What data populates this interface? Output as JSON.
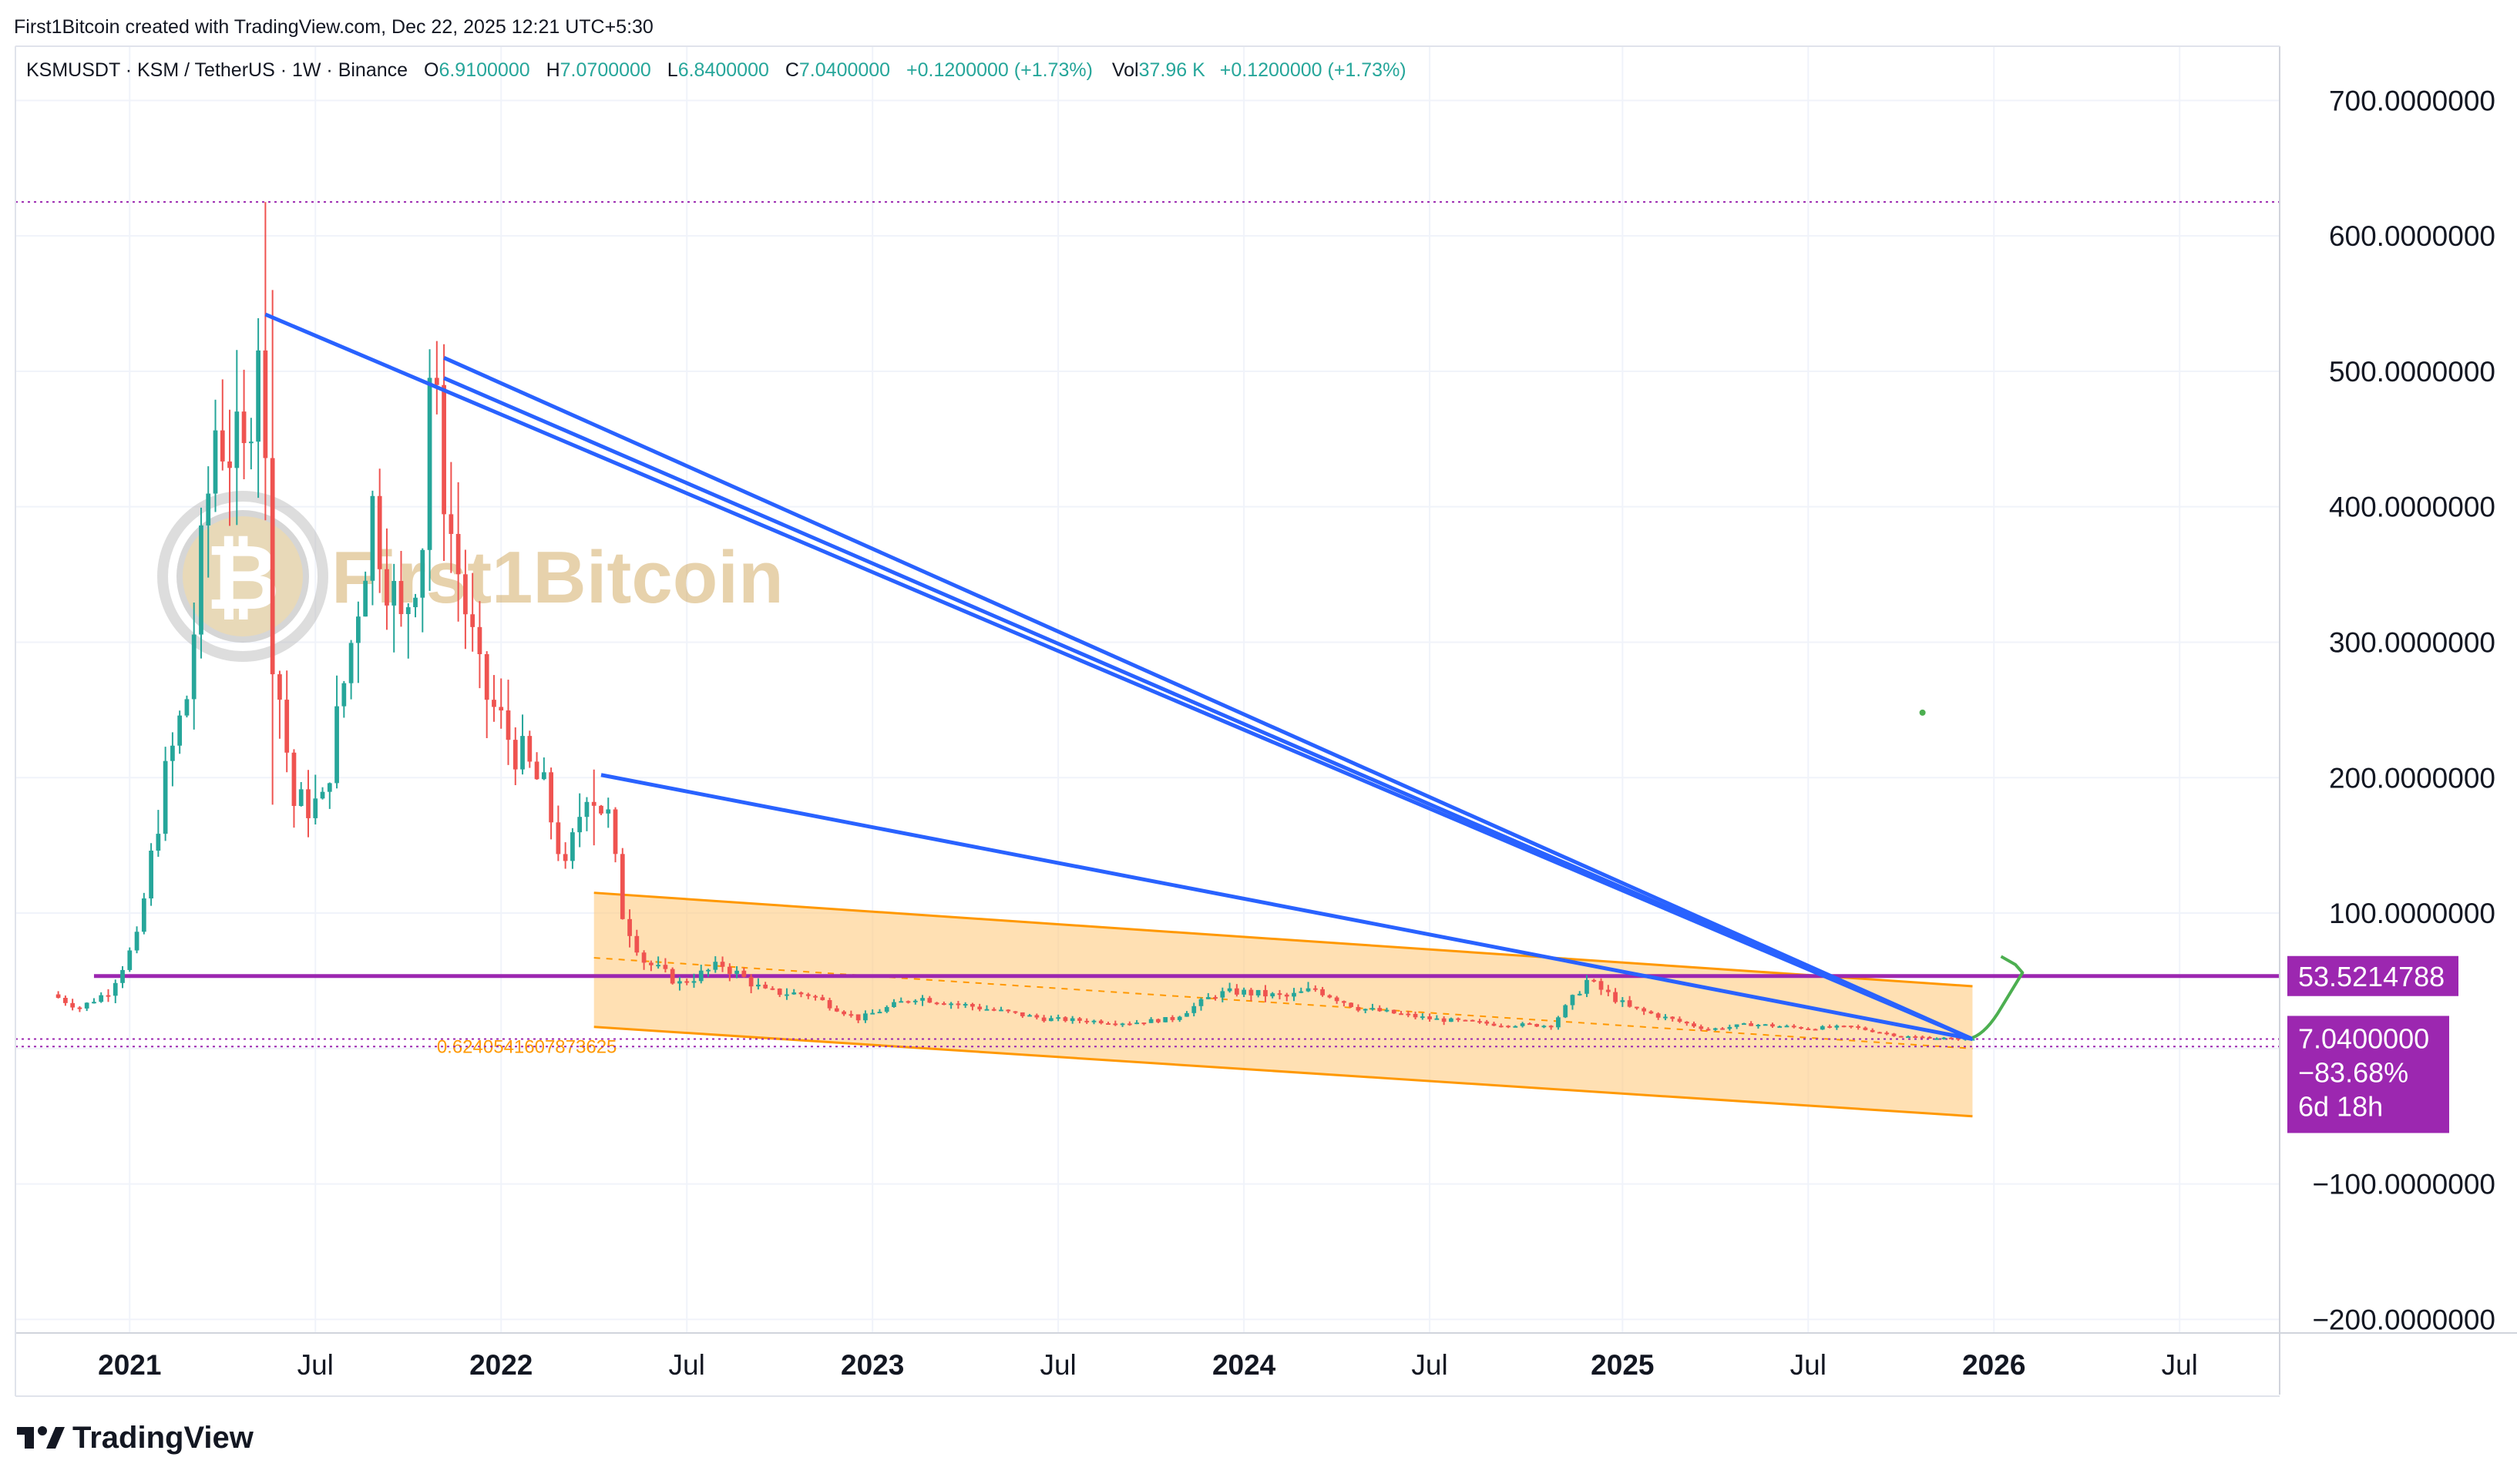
{
  "header": {
    "credit": "First1Bitcoin created with TradingView.com, Dec 22, 2025 12:21 UTC+5:30"
  },
  "legend": {
    "symbol": "KSMUSDT · KSM / TetherUS · 1W · Binance",
    "open_label": "O",
    "open": "6.9100000",
    "high_label": "H",
    "high": "7.0700000",
    "low_label": "L",
    "low": "6.8400000",
    "close_label": "C",
    "close": "7.0400000",
    "change": "+0.1200000 (+1.73%)",
    "vol_label": "Vol",
    "vol": "37.96 K",
    "vol_change": "+0.1200000 (+1.73%)"
  },
  "watermark": {
    "text": "First1Bitcoin",
    "icon": "bitcoin-coin-logo"
  },
  "footer": {
    "brand": "TradingView",
    "icon": "tradingview-logo-icon"
  },
  "colors": {
    "up": "#26a69a",
    "down": "#ef5350",
    "trendline": "#2962ff",
    "channel_fill": "#ffcc80",
    "channel_line": "#ff9800",
    "level": "#9c27b0",
    "label_bg": "#9c27b0",
    "projection": "#4caf50"
  },
  "chart_data": {
    "type": "candlestick",
    "title": "KSMUSDT · KSM / TetherUS · 1W · Binance",
    "ylim": [
      -210,
      740
    ],
    "xlim": [
      "2020-09-14",
      "2026-10-12"
    ],
    "yticks": [
      {
        "value": 700,
        "label": "700.0000000"
      },
      {
        "value": 600,
        "label": "600.0000000"
      },
      {
        "value": 500,
        "label": "500.0000000"
      },
      {
        "value": 400,
        "label": "400.0000000"
      },
      {
        "value": 300,
        "label": "300.0000000"
      },
      {
        "value": 200,
        "label": "200.0000000"
      },
      {
        "value": 100,
        "label": "100.0000000"
      },
      {
        "value": -100,
        "label": "−100.0000000"
      },
      {
        "value": -200,
        "label": "−200.0000000"
      }
    ],
    "xticks": [
      {
        "date": "2021-01-04",
        "label": "2021",
        "bold": true
      },
      {
        "date": "2021-07-05",
        "label": "Jul",
        "bold": false
      },
      {
        "date": "2022-01-03",
        "label": "2022",
        "bold": true
      },
      {
        "date": "2022-07-04",
        "label": "Jul",
        "bold": false
      },
      {
        "date": "2023-01-02",
        "label": "2023",
        "bold": true
      },
      {
        "date": "2023-07-03",
        "label": "Jul",
        "bold": false
      },
      {
        "date": "2024-01-01",
        "label": "2024",
        "bold": true
      },
      {
        "date": "2024-07-01",
        "label": "Jul",
        "bold": false
      },
      {
        "date": "2025-01-06",
        "label": "2025",
        "bold": true
      },
      {
        "date": "2025-07-07",
        "label": "Jul",
        "bold": false
      },
      {
        "date": "2026-01-05",
        "label": "2026",
        "bold": true
      },
      {
        "date": "2026-07-06",
        "label": "Jul",
        "bold": false
      }
    ],
    "anchors": [
      [
        "2020-10-26",
        40
      ],
      [
        "2020-11-23",
        30
      ],
      [
        "2020-12-21",
        42
      ],
      [
        "2021-01-18",
        80
      ],
      [
        "2021-02-15",
        200
      ],
      [
        "2021-03-08",
        260
      ],
      [
        "2021-04-05",
        460
      ],
      [
        "2021-05-03",
        430
      ],
      [
        "2021-05-17",
        540
      ],
      [
        "2021-05-31",
        300
      ],
      [
        "2021-06-21",
        180
      ],
      [
        "2021-07-19",
        180
      ],
      [
        "2021-08-16",
        300
      ],
      [
        "2021-09-06",
        400
      ],
      [
        "2021-10-04",
        310
      ],
      [
        "2021-10-25",
        380
      ],
      [
        "2021-11-01",
        500
      ],
      [
        "2021-11-22",
        380
      ],
      [
        "2021-12-20",
        270
      ],
      [
        "2022-01-17",
        230
      ],
      [
        "2022-02-21",
        190
      ],
      [
        "2022-03-14",
        130
      ],
      [
        "2022-04-04",
        195
      ],
      [
        "2022-04-25",
        170
      ],
      [
        "2022-05-09",
        100
      ],
      [
        "2022-05-30",
        65
      ],
      [
        "2022-07-04",
        48
      ],
      [
        "2022-08-15",
        62
      ],
      [
        "2022-09-26",
        42
      ],
      [
        "2022-11-07",
        40
      ],
      [
        "2022-12-26",
        22
      ],
      [
        "2023-02-20",
        38
      ],
      [
        "2023-04-10",
        32
      ],
      [
        "2023-06-26",
        22
      ],
      [
        "2023-09-18",
        19
      ],
      [
        "2023-10-30",
        22
      ],
      [
        "2023-12-11",
        40
      ],
      [
        "2024-01-01",
        42
      ],
      [
        "2024-02-19",
        38
      ],
      [
        "2024-03-18",
        44
      ],
      [
        "2024-04-29",
        30
      ],
      [
        "2024-07-08",
        22
      ],
      [
        "2024-09-09",
        18
      ],
      [
        "2024-11-04",
        17
      ],
      [
        "2024-12-09",
        50
      ],
      [
        "2025-01-20",
        30
      ],
      [
        "2025-04-07",
        14
      ],
      [
        "2025-05-19",
        18
      ],
      [
        "2025-07-14",
        15
      ],
      [
        "2025-08-25",
        16
      ],
      [
        "2025-10-13",
        9
      ],
      [
        "2025-12-15",
        7
      ]
    ],
    "spikes": [
      {
        "date": "2021-05-17",
        "high": 625,
        "low": 390
      },
      {
        "date": "2021-05-24",
        "high": 560,
        "low": 180
      },
      {
        "date": "2021-11-08",
        "high": 520,
        "low": 360
      },
      {
        "date": "2022-04-04",
        "high": 206,
        "low": 150
      }
    ],
    "last_candle": {
      "date": "2025-12-15",
      "open": 6.91,
      "high": 7.07,
      "low": 6.84,
      "close": 7.04
    },
    "annotations": {
      "falling_wedge_lines": [
        {
          "from": [
            "2021-05-17",
            542
          ],
          "to": [
            "2025-12-15",
            7
          ]
        },
        {
          "from": [
            "2021-11-08",
            510
          ],
          "to": [
            "2025-12-15",
            7
          ]
        },
        {
          "from": [
            "2021-11-08",
            495
          ],
          "to": [
            "2025-12-15",
            7
          ]
        },
        {
          "from": [
            "2022-04-11",
            202
          ],
          "to": [
            "2025-12-15",
            7
          ]
        }
      ],
      "regression_channel": {
        "start": "2022-04-04",
        "end": "2025-12-15",
        "upper": [
          115,
          46
        ],
        "mid": [
          67,
          0
        ],
        "lower": [
          16,
          -50
        ],
        "label": "0.6240541607873625"
      },
      "horizontal_level": {
        "value": 53.5214788,
        "label": "53.5214788",
        "start": "2020-11-30"
      },
      "dotted_levels": [
        {
          "value": 625,
          "color": "#9c27b0"
        },
        {
          "value": 7.04,
          "color": "#9c27b0"
        },
        {
          "value": 1.5,
          "color": "#9c27b0"
        }
      ],
      "price_label": {
        "price": "7.0400000",
        "change": "−83.68%",
        "countdown": "6d 18h"
      },
      "projection_path": [
        [
          "2025-12-15",
          8
        ],
        [
          "2026-01-12",
          30
        ],
        [
          "2026-02-02",
          56
        ],
        [
          "2026-01-26",
          62
        ],
        [
          "2026-01-12",
          68
        ]
      ],
      "stray_dot": [
        "2025-10-27",
        248
      ]
    }
  }
}
